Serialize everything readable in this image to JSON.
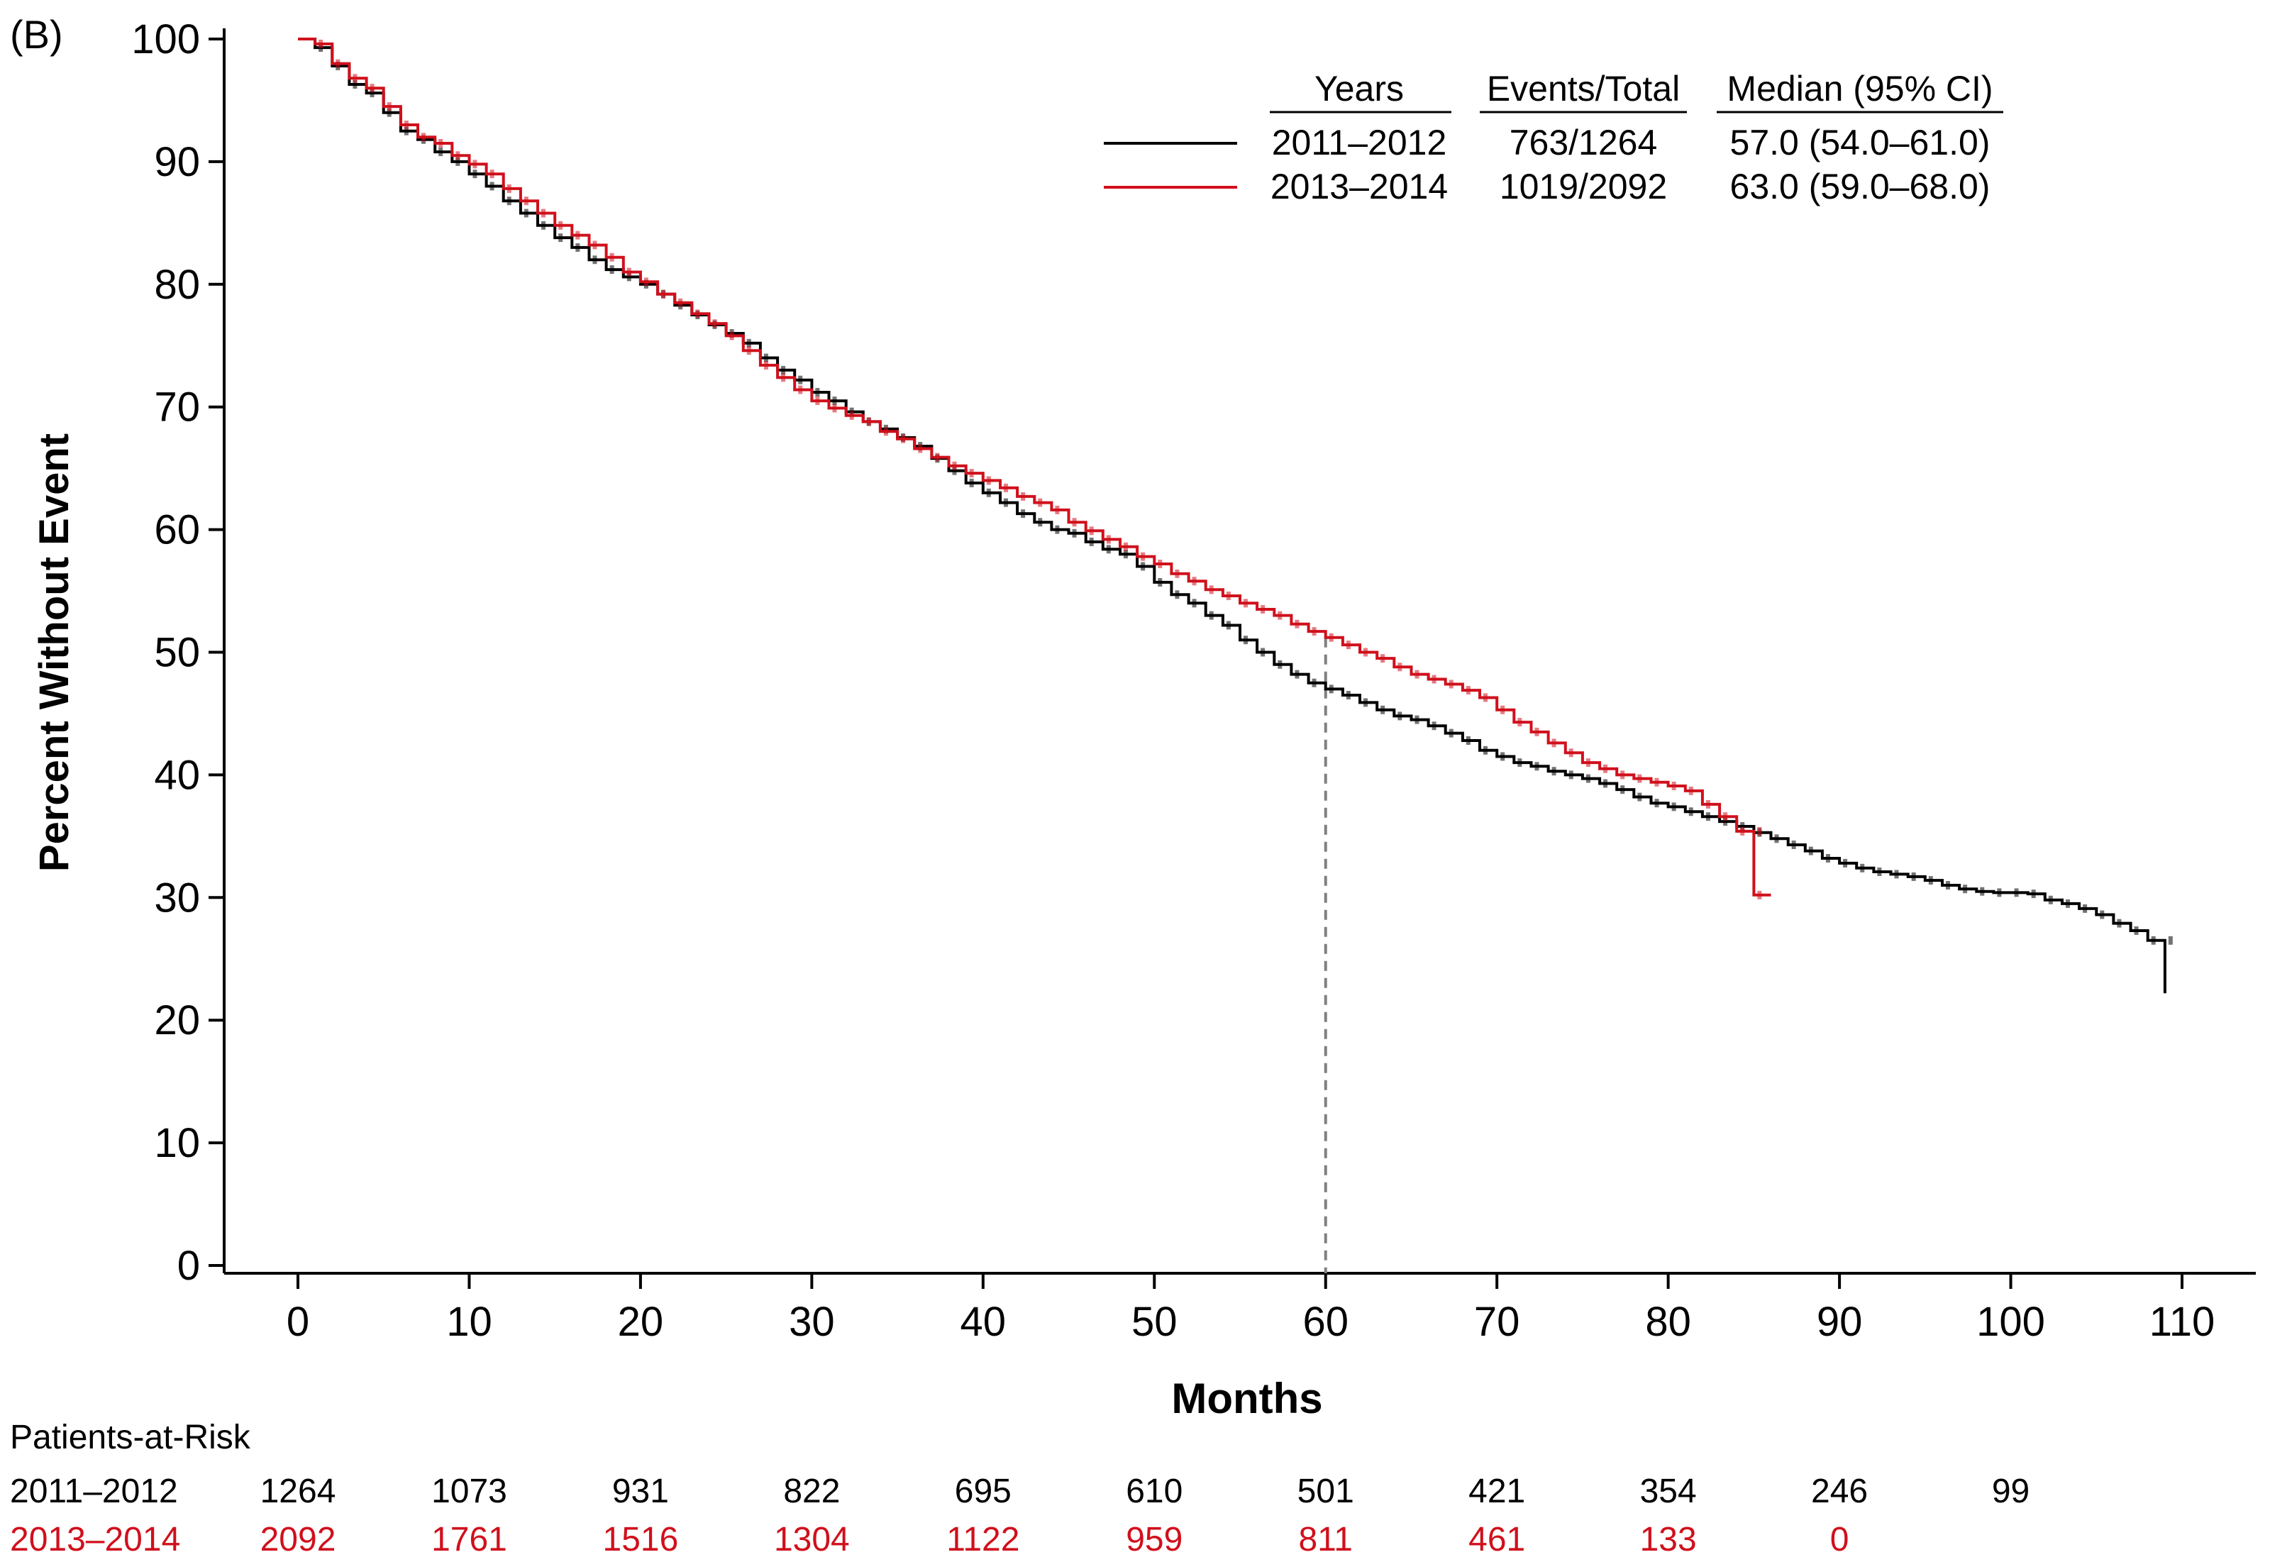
{
  "panel_label": "(B)",
  "chart_data": {
    "type": "line",
    "xlabel": "Months",
    "ylabel": "Percent Without Event",
    "xlim": [
      0,
      110
    ],
    "ylim": [
      0,
      100
    ],
    "x_ticks": [
      0,
      10,
      20,
      30,
      40,
      50,
      60,
      70,
      80,
      90,
      100,
      110
    ],
    "y_ticks": [
      0,
      10,
      20,
      30,
      40,
      50,
      60,
      70,
      80,
      90,
      100
    ],
    "grid": false,
    "legend_position": "top-right",
    "legend_headers": {
      "years": "Years",
      "events": "Events/Total",
      "median": "Median (95% CI)"
    },
    "reference_line_x": 60,
    "series": [
      {
        "name": "2011–2012",
        "color": "#000000",
        "events_total": "763/1264",
        "median_ci": "57.0 (54.0–61.0)",
        "points": [
          [
            0,
            100
          ],
          [
            1,
            99.3
          ],
          [
            2,
            97.8
          ],
          [
            3,
            96.3
          ],
          [
            4,
            95.6
          ],
          [
            5,
            94.0
          ],
          [
            6,
            92.5
          ],
          [
            7,
            91.8
          ],
          [
            8,
            90.8
          ],
          [
            9,
            90.0
          ],
          [
            10,
            89.0
          ],
          [
            11,
            88.0
          ],
          [
            12,
            86.8
          ],
          [
            13,
            85.8
          ],
          [
            14,
            84.8
          ],
          [
            15,
            83.8
          ],
          [
            16,
            83.0
          ],
          [
            17,
            82.0
          ],
          [
            18,
            81.2
          ],
          [
            19,
            80.6
          ],
          [
            20,
            80.0
          ],
          [
            21,
            79.2
          ],
          [
            22,
            78.3
          ],
          [
            23,
            77.5
          ],
          [
            24,
            76.7
          ],
          [
            25,
            76.0
          ],
          [
            26,
            75.2
          ],
          [
            27,
            74.0
          ],
          [
            28,
            73.0
          ],
          [
            29,
            72.2
          ],
          [
            30,
            71.2
          ],
          [
            31,
            70.5
          ],
          [
            32,
            69.6
          ],
          [
            33,
            68.8
          ],
          [
            34,
            68.2
          ],
          [
            35,
            67.5
          ],
          [
            36,
            66.8
          ],
          [
            37,
            65.8
          ],
          [
            38,
            64.8
          ],
          [
            39,
            63.8
          ],
          [
            40,
            63.0
          ],
          [
            41,
            62.2
          ],
          [
            42,
            61.3
          ],
          [
            43,
            60.6
          ],
          [
            44,
            60.0
          ],
          [
            45,
            59.7
          ],
          [
            46,
            59.0
          ],
          [
            47,
            58.4
          ],
          [
            48,
            58.0
          ],
          [
            49,
            57.0
          ],
          [
            50,
            55.7
          ],
          [
            51,
            54.7
          ],
          [
            52,
            54.0
          ],
          [
            53,
            53.0
          ],
          [
            54,
            52.2
          ],
          [
            55,
            51.0
          ],
          [
            56,
            50.0
          ],
          [
            57,
            49.0
          ],
          [
            58,
            48.2
          ],
          [
            59,
            47.5
          ],
          [
            60,
            47.0
          ],
          [
            61,
            46.5
          ],
          [
            62,
            45.9
          ],
          [
            63,
            45.3
          ],
          [
            64,
            44.8
          ],
          [
            65,
            44.5
          ],
          [
            66,
            44.0
          ],
          [
            67,
            43.4
          ],
          [
            68,
            42.8
          ],
          [
            69,
            42.0
          ],
          [
            70,
            41.5
          ],
          [
            71,
            41.0
          ],
          [
            72,
            40.7
          ],
          [
            73,
            40.3
          ],
          [
            74,
            40.0
          ],
          [
            75,
            39.7
          ],
          [
            76,
            39.3
          ],
          [
            77,
            38.8
          ],
          [
            78,
            38.2
          ],
          [
            79,
            37.7
          ],
          [
            80,
            37.4
          ],
          [
            81,
            37.0
          ],
          [
            82,
            36.6
          ],
          [
            83,
            36.2
          ],
          [
            84,
            35.8
          ],
          [
            85,
            35.3
          ],
          [
            86,
            34.8
          ],
          [
            87,
            34.3
          ],
          [
            88,
            33.8
          ],
          [
            89,
            33.2
          ],
          [
            90,
            32.8
          ],
          [
            91,
            32.4
          ],
          [
            92,
            32.1
          ],
          [
            93,
            31.9
          ],
          [
            94,
            31.7
          ],
          [
            95,
            31.4
          ],
          [
            96,
            31.0
          ],
          [
            97,
            30.7
          ],
          [
            98,
            30.5
          ],
          [
            99,
            30.4
          ],
          [
            100,
            30.4
          ],
          [
            101,
            30.3
          ],
          [
            102,
            29.8
          ],
          [
            103,
            29.5
          ],
          [
            104,
            29.1
          ],
          [
            105,
            28.6
          ],
          [
            106,
            27.9
          ],
          [
            107,
            27.3
          ],
          [
            108,
            26.5
          ],
          [
            109,
            26.5
          ],
          [
            109,
            22.2
          ]
        ]
      },
      {
        "name": "2013–2014",
        "color": "#d0101c",
        "events_total": "1019/2092",
        "median_ci": "63.0 (59.0–68.0)",
        "points": [
          [
            0,
            100
          ],
          [
            1,
            99.6
          ],
          [
            2,
            98.0
          ],
          [
            3,
            96.8
          ],
          [
            4,
            96.0
          ],
          [
            5,
            94.5
          ],
          [
            6,
            93.0
          ],
          [
            7,
            92.0
          ],
          [
            8,
            91.5
          ],
          [
            9,
            90.5
          ],
          [
            10,
            89.8
          ],
          [
            11,
            89.0
          ],
          [
            12,
            87.8
          ],
          [
            13,
            86.8
          ],
          [
            14,
            85.8
          ],
          [
            15,
            84.8
          ],
          [
            16,
            84.0
          ],
          [
            17,
            83.2
          ],
          [
            18,
            82.2
          ],
          [
            19,
            81.0
          ],
          [
            20,
            80.2
          ],
          [
            21,
            79.2
          ],
          [
            22,
            78.5
          ],
          [
            23,
            77.6
          ],
          [
            24,
            76.8
          ],
          [
            25,
            75.8
          ],
          [
            26,
            74.6
          ],
          [
            27,
            73.4
          ],
          [
            28,
            72.4
          ],
          [
            29,
            71.4
          ],
          [
            30,
            70.5
          ],
          [
            31,
            69.9
          ],
          [
            32,
            69.3
          ],
          [
            33,
            68.8
          ],
          [
            34,
            68.0
          ],
          [
            35,
            67.4
          ],
          [
            36,
            66.6
          ],
          [
            37,
            65.9
          ],
          [
            38,
            65.2
          ],
          [
            39,
            64.6
          ],
          [
            40,
            64.0
          ],
          [
            41,
            63.4
          ],
          [
            42,
            62.7
          ],
          [
            43,
            62.2
          ],
          [
            44,
            61.6
          ],
          [
            45,
            60.6
          ],
          [
            46,
            59.9
          ],
          [
            47,
            59.2
          ],
          [
            48,
            58.6
          ],
          [
            49,
            57.8
          ],
          [
            50,
            57.2
          ],
          [
            51,
            56.4
          ],
          [
            52,
            55.8
          ],
          [
            53,
            55.1
          ],
          [
            54,
            54.6
          ],
          [
            55,
            54.0
          ],
          [
            56,
            53.5
          ],
          [
            57,
            53.0
          ],
          [
            58,
            52.3
          ],
          [
            59,
            51.7
          ],
          [
            60,
            51.2
          ],
          [
            61,
            50.6
          ],
          [
            62,
            50.0
          ],
          [
            63,
            49.5
          ],
          [
            64,
            48.8
          ],
          [
            65,
            48.2
          ],
          [
            66,
            47.8
          ],
          [
            67,
            47.4
          ],
          [
            68,
            46.9
          ],
          [
            69,
            46.3
          ],
          [
            70,
            45.3
          ],
          [
            71,
            44.3
          ],
          [
            72,
            43.5
          ],
          [
            73,
            42.6
          ],
          [
            74,
            41.8
          ],
          [
            75,
            41.0
          ],
          [
            76,
            40.5
          ],
          [
            77,
            40.0
          ],
          [
            78,
            39.7
          ],
          [
            79,
            39.4
          ],
          [
            80,
            39.1
          ],
          [
            81,
            38.7
          ],
          [
            82,
            37.6
          ],
          [
            83,
            36.6
          ],
          [
            84,
            35.4
          ],
          [
            85,
            35.4
          ],
          [
            85,
            30.2
          ],
          [
            86,
            30.2
          ]
        ]
      }
    ],
    "at_risk": {
      "title": "Patients-at-Risk",
      "x": [
        0,
        10,
        20,
        30,
        40,
        50,
        60,
        70,
        80,
        90,
        100
      ],
      "rows": [
        {
          "name": "2011–2012",
          "color": "#000000",
          "values": [
            "1264",
            "1073",
            "931",
            "822",
            "695",
            "610",
            "501",
            "421",
            "354",
            "246",
            "99"
          ]
        },
        {
          "name": "2013–2014",
          "color": "#d0101c",
          "values": [
            "2092",
            "1761",
            "1516",
            "1304",
            "1122",
            "959",
            "811",
            "461",
            "133",
            "0"
          ]
        }
      ]
    }
  }
}
